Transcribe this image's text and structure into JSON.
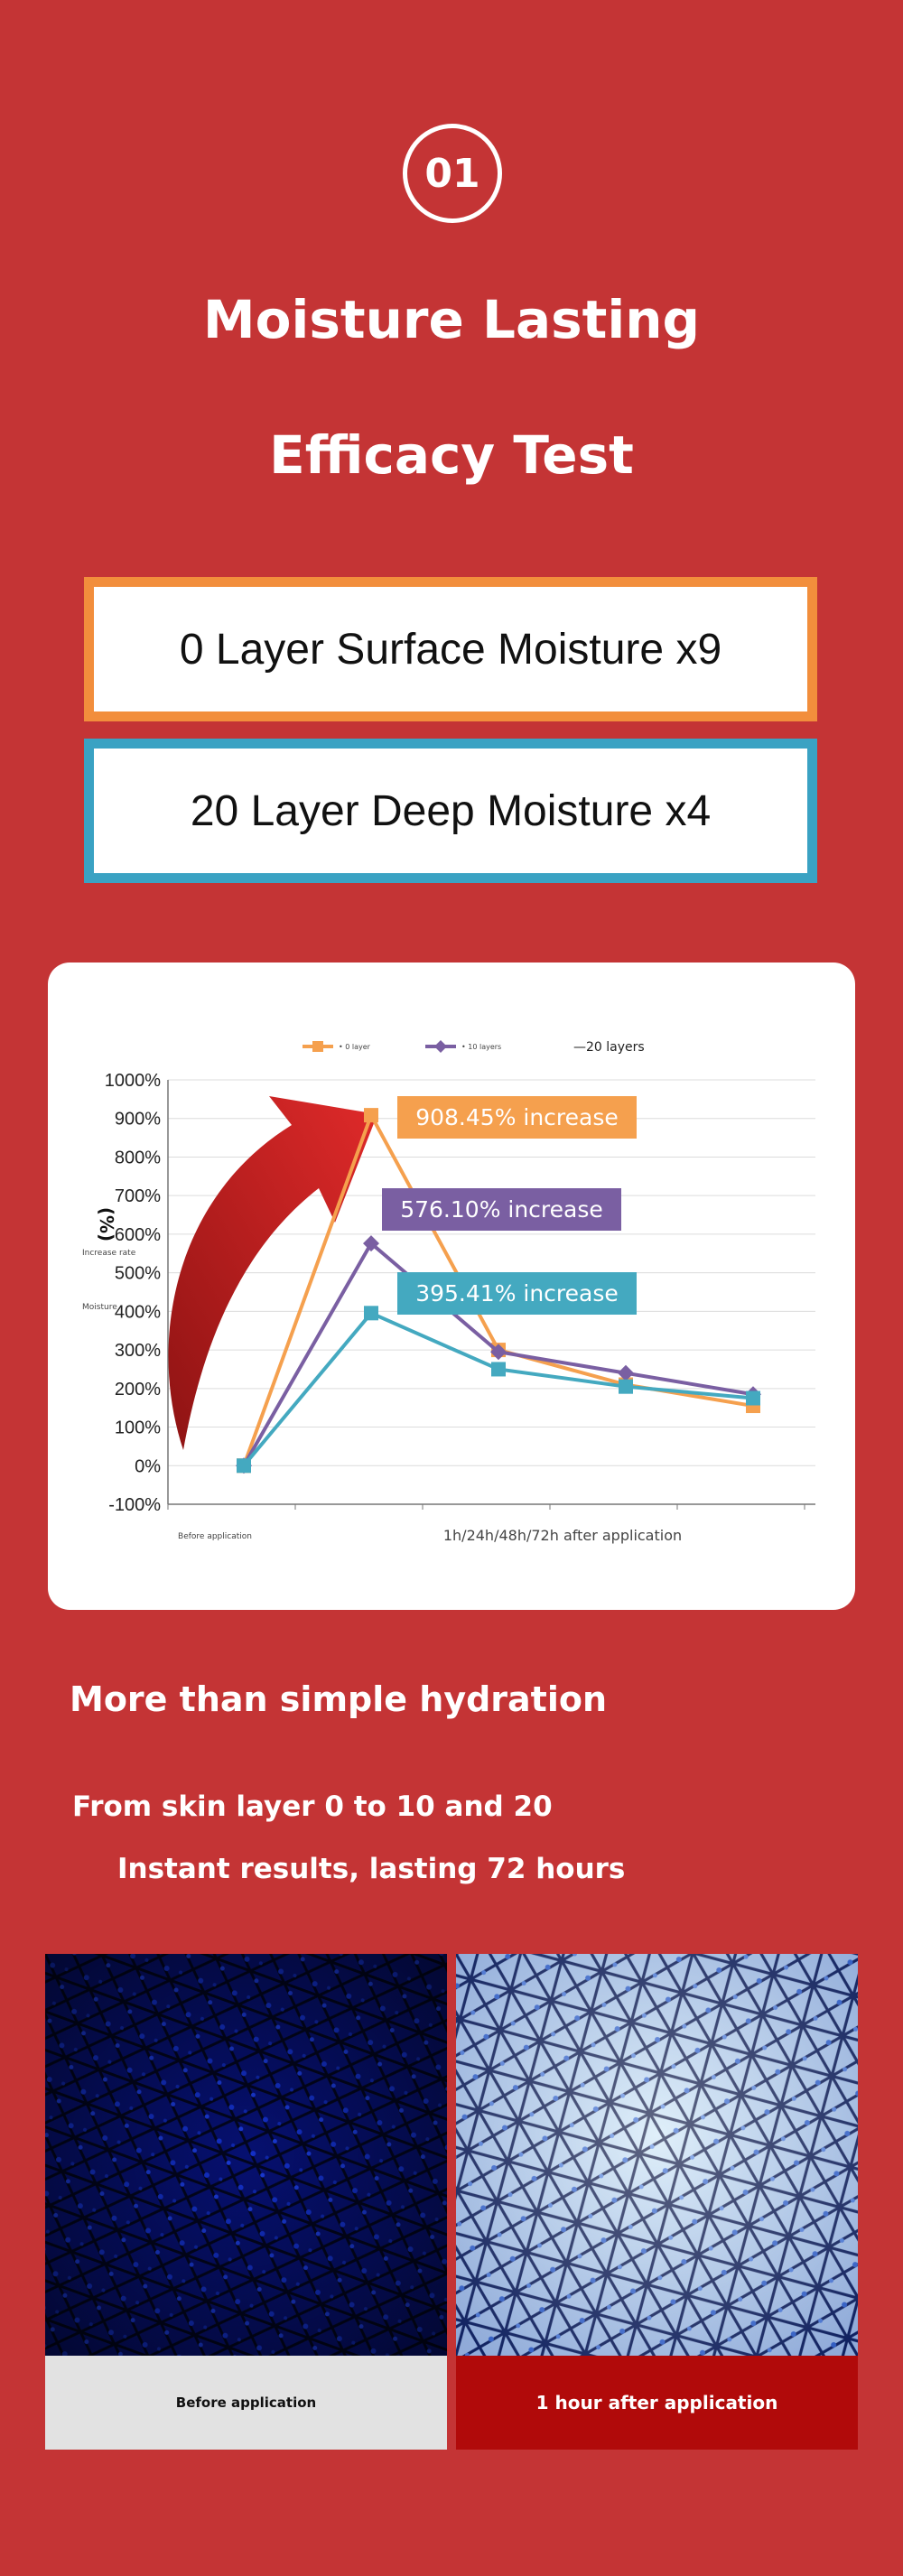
{
  "badge": "01",
  "title": {
    "line1": "Moisture Lasting",
    "line2": "Efficacy Test"
  },
  "highlights": [
    {
      "text": "0 Layer Surface Moisture x9",
      "color": "#f28e3c"
    },
    {
      "text": "20 Layer Deep Moisture x4",
      "color": "#3aa2c3"
    }
  ],
  "chart_data": {
    "type": "line",
    "categories": [
      "Before application",
      "1h",
      "24h",
      "48h",
      "72h"
    ],
    "xlabel": "1h/24h/48h/72h after application",
    "xlabel_left": "Before application",
    "ylabel": "(%)",
    "ylabel_sub1": "Increase rate",
    "ylabel_sub2": "Moisture",
    "ylim": [
      -100,
      1000
    ],
    "yticks": [
      "1000%",
      "900%",
      "800%",
      "700%",
      "600%",
      "500%",
      "400%",
      "300%",
      "200%",
      "100%",
      "0%",
      "-100%"
    ],
    "series": [
      {
        "name": "• 0 layer",
        "color": "#f5a04e",
        "marker": "square",
        "values": [
          0,
          908.45,
          300,
          210,
          155
        ]
      },
      {
        "name": "• 10 layers",
        "color": "#7a5fa2",
        "marker": "diamond",
        "values": [
          0,
          576.1,
          295,
          240,
          185
        ]
      },
      {
        "name": "—20 layers",
        "color": "#44a9c0",
        "marker": "square",
        "values": [
          0,
          395.41,
          250,
          205,
          175
        ]
      }
    ],
    "annotations": [
      {
        "text": "908.45% increase",
        "color": "#f5a04e"
      },
      {
        "text": "576.10% increase",
        "color": "#7a5fa2"
      },
      {
        "text": "395.41% increase",
        "color": "#44a9c0"
      }
    ]
  },
  "section": {
    "heading": "More than simple hydration",
    "line1": "From skin layer 0 to 10 and 20",
    "line2": "Instant results, lasting 72 hours"
  },
  "comparison": {
    "before_label": "Before application",
    "after_label": "1 hour after application"
  }
}
